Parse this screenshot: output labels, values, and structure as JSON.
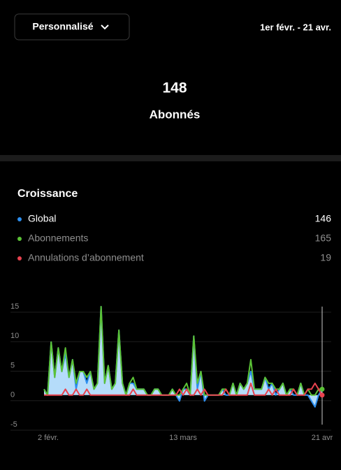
{
  "header": {
    "button": "Personnalisé",
    "date_range": "1er févr. - 21 avr."
  },
  "summary": {
    "value": 148,
    "label": "Abonnés"
  },
  "chart_data": {
    "type": "area",
    "title": "Croissance",
    "categories": [
      "2 févr.",
      null,
      null,
      null,
      null,
      null,
      null,
      null,
      null,
      null,
      null,
      null,
      null,
      null,
      null,
      null,
      null,
      null,
      null,
      null,
      null,
      null,
      null,
      null,
      null,
      null,
      null,
      null,
      null,
      null,
      null,
      null,
      null,
      null,
      null,
      null,
      null,
      null,
      null,
      "13 mars",
      null,
      null,
      null,
      null,
      null,
      null,
      null,
      null,
      null,
      null,
      null,
      null,
      null,
      null,
      null,
      null,
      null,
      null,
      null,
      null,
      null,
      null,
      null,
      null,
      null,
      null,
      null,
      null,
      null,
      null,
      null,
      null,
      null,
      null,
      null,
      null,
      null,
      null,
      "21 avr"
    ],
    "series": [
      {
        "name": "Global",
        "total": 146,
        "color": "#2d8ff0",
        "fill": "#b5dcfa",
        "values": [
          1,
          0,
          9,
          3,
          8,
          4,
          7,
          3,
          6,
          1,
          4,
          4,
          2,
          4,
          1,
          2,
          15,
          2,
          5,
          1,
          2,
          11,
          2,
          0,
          2,
          2,
          1,
          1,
          1,
          0,
          0,
          1,
          1,
          0,
          0,
          0,
          1,
          0,
          -1,
          1,
          1,
          0,
          10,
          1,
          4,
          -1,
          0,
          0,
          0,
          0,
          1,
          0,
          0,
          2,
          0,
          2,
          1,
          2,
          4,
          1,
          1,
          1,
          3,
          1,
          2,
          0,
          1,
          2,
          0,
          1,
          0,
          0,
          2,
          0,
          0,
          -1,
          -2,
          0,
          1
        ]
      },
      {
        "name": "Abonnements",
        "total": 165,
        "color": "#5bc236",
        "values": [
          1,
          0,
          9,
          3,
          8,
          4,
          8,
          3,
          6,
          2,
          4,
          4,
          3,
          4,
          1,
          2,
          15,
          2,
          5,
          1,
          2,
          11,
          2,
          0,
          2,
          3,
          1,
          1,
          1,
          0,
          0,
          1,
          1,
          0,
          0,
          0,
          1,
          0,
          0,
          1,
          2,
          0,
          10,
          2,
          4,
          0,
          0,
          0,
          0,
          0,
          1,
          1,
          0,
          2,
          0,
          2,
          1,
          2,
          6,
          1,
          1,
          1,
          3,
          2,
          2,
          1,
          1,
          2,
          0,
          1,
          1,
          0,
          2,
          0,
          1,
          0,
          0,
          1,
          1
        ]
      },
      {
        "name": "Annulations d’abonnement",
        "total": 19,
        "color": "#e8424f",
        "values": [
          0,
          0,
          0,
          0,
          0,
          0,
          1,
          0,
          0,
          1,
          0,
          0,
          1,
          0,
          0,
          0,
          0,
          0,
          0,
          0,
          0,
          0,
          0,
          0,
          0,
          1,
          0,
          0,
          0,
          0,
          0,
          0,
          0,
          0,
          0,
          0,
          0,
          0,
          1,
          0,
          1,
          0,
          0,
          1,
          0,
          1,
          0,
          0,
          0,
          0,
          0,
          1,
          0,
          0,
          0,
          0,
          0,
          0,
          2,
          0,
          0,
          0,
          0,
          1,
          0,
          1,
          0,
          0,
          0,
          0,
          1,
          0,
          0,
          0,
          1,
          1,
          2,
          1,
          0
        ]
      }
    ],
    "ylim": [
      -5,
      15
    ],
    "yticks": [
      -5,
      0,
      5,
      10,
      15
    ],
    "grid": true
  }
}
